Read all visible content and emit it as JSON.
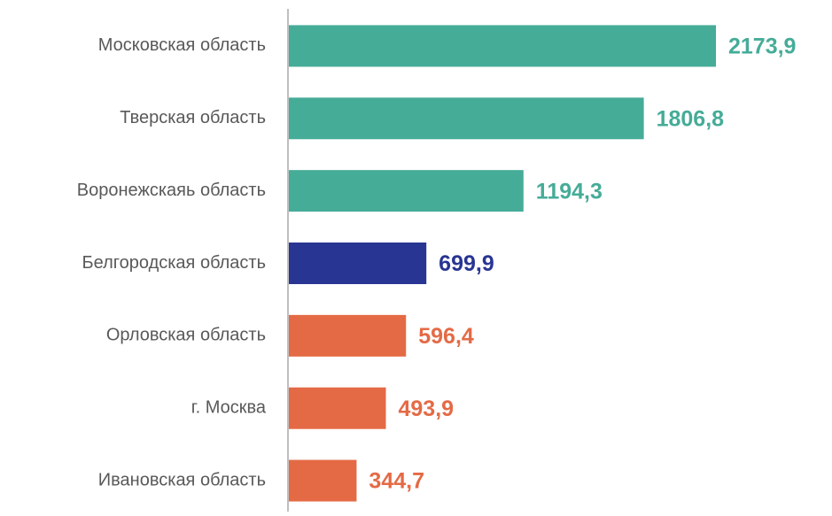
{
  "chart_data": {
    "type": "bar",
    "orientation": "horizontal",
    "categories": [
      "Московская область",
      "Тверская область",
      "Воронежскаяь область",
      "Белгородская область",
      "Орловская область",
      "г. Москва",
      "Ивановская область"
    ],
    "values": [
      2173.9,
      1806.8,
      1194.3,
      699.9,
      596.4,
      493.9,
      344.7
    ],
    "value_labels": [
      "2173,9",
      "1806,8",
      "1194,3",
      "699,9",
      "596,4",
      "493,9",
      "344,7"
    ],
    "colors": [
      "#45ac98",
      "#45ac98",
      "#45ac98",
      "#283593",
      "#e46a45",
      "#e46a45",
      "#e46a45"
    ]
  }
}
